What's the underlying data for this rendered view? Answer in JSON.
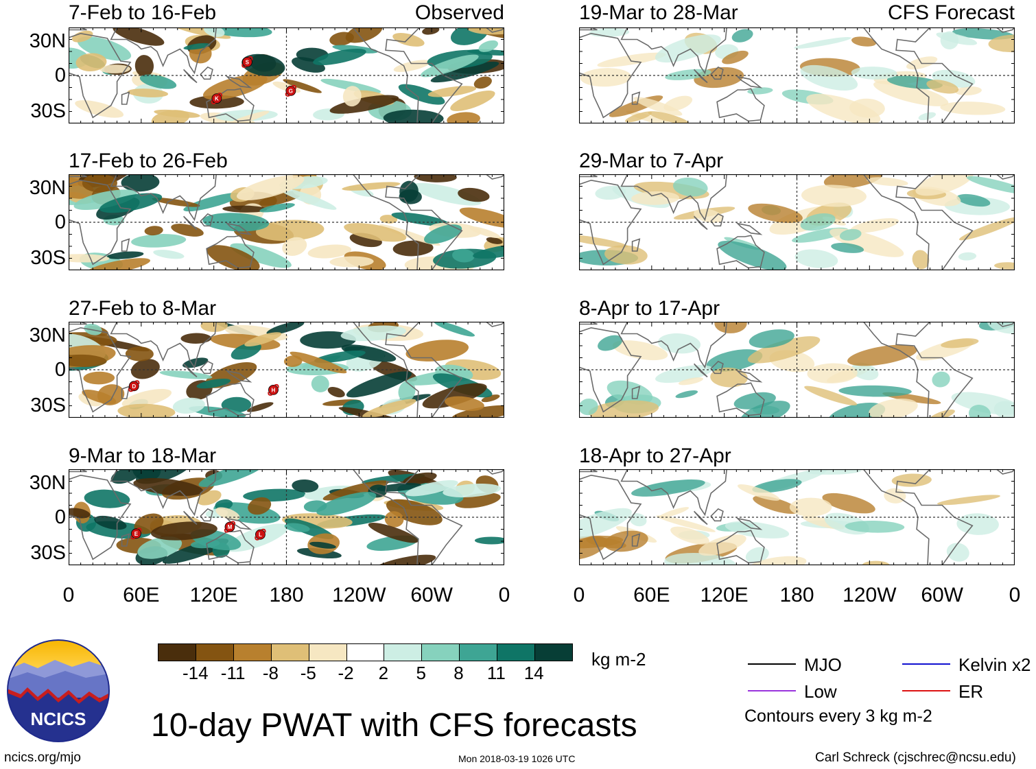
{
  "chart_data": {
    "type": "heatmap",
    "title": "10-day PWAT with CFS forecasts",
    "variable_units": "kg m-2",
    "observed_label": "Observed",
    "forecast_label": "CFS Forecast",
    "x_ticks": [
      "0",
      "60E",
      "120E",
      "180",
      "120W",
      "60W",
      "0"
    ],
    "y_ticks": [
      "30N",
      "0",
      "30S"
    ],
    "panels": [
      {
        "column": "observed",
        "period": "7-Feb to 16-Feb",
        "storms": [
          "S",
          "K",
          "G"
        ]
      },
      {
        "column": "observed",
        "period": "17-Feb to 26-Feb",
        "storms": []
      },
      {
        "column": "observed",
        "period": "27-Feb to 8-Mar",
        "storms": [
          "D",
          "H"
        ]
      },
      {
        "column": "observed",
        "period": "9-Mar to 18-Mar",
        "storms": [
          "E",
          "M",
          "L"
        ]
      },
      {
        "column": "forecast",
        "period": "19-Mar to 28-Mar",
        "storms": []
      },
      {
        "column": "forecast",
        "period": "29-Mar to 7-Apr",
        "storms": []
      },
      {
        "column": "forecast",
        "period": "8-Apr to 17-Apr",
        "storms": []
      },
      {
        "column": "forecast",
        "period": "18-Apr to 27-Apr",
        "storms": []
      }
    ],
    "colorbar": {
      "labels": [
        "-14",
        "-11",
        "-8",
        "-5",
        "-2",
        "2",
        "5",
        "8",
        "11",
        "14"
      ],
      "colors": [
        "#4a2e0c",
        "#845411",
        "#b8802e",
        "#dfbf77",
        "#f6e7c2",
        "#ffffff",
        "#cdeee4",
        "#86d2bd",
        "#3ea594",
        "#0f7566",
        "#073e36"
      ],
      "units": "kg m-2"
    },
    "legend": [
      {
        "label": "MJO",
        "color": "#000000"
      },
      {
        "label": "Kelvin x2",
        "color": "#1010d0"
      },
      {
        "label": "Low",
        "color": "#9933dd"
      },
      {
        "label": "ER",
        "color": "#dd1111"
      }
    ],
    "contour_note": "Contours every 3 kg m-2"
  },
  "footer": {
    "logo_text": "NCICS",
    "url": "ncics.org/mjo",
    "timestamp": "Mon 2018-03-19 1026 UTC",
    "credit": "Carl Schreck (cjschrec@ncsu.edu)"
  }
}
